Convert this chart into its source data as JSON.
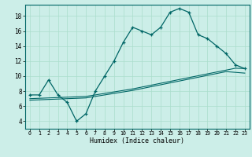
{
  "title": "",
  "xlabel": "Humidex (Indice chaleur)",
  "bg_color": "#cceee8",
  "line_color": "#006666",
  "grid_color": "#aaddcc",
  "xlim": [
    -0.5,
    23.5
  ],
  "ylim": [
    3.0,
    19.5
  ],
  "xticks": [
    0,
    1,
    2,
    3,
    4,
    5,
    6,
    7,
    8,
    9,
    10,
    11,
    12,
    13,
    14,
    15,
    16,
    17,
    18,
    19,
    20,
    21,
    22,
    23
  ],
  "yticks": [
    4,
    6,
    8,
    10,
    12,
    14,
    16,
    18
  ],
  "main_y": [
    7.5,
    7.5,
    9.5,
    7.5,
    6.5,
    4.0,
    5.0,
    8.0,
    10.0,
    12.0,
    14.5,
    16.5,
    16.0,
    15.5,
    16.5,
    18.5,
    19.0,
    18.5,
    15.5,
    15.0,
    14.0,
    13.0,
    11.5,
    11.0
  ],
  "line1_y": [
    7.0,
    7.05,
    7.1,
    7.15,
    7.2,
    7.25,
    7.3,
    7.5,
    7.7,
    7.9,
    8.1,
    8.3,
    8.55,
    8.8,
    9.05,
    9.3,
    9.55,
    9.8,
    10.05,
    10.3,
    10.55,
    10.8,
    11.05,
    11.0
  ],
  "line2_y": [
    6.8,
    6.85,
    6.9,
    6.95,
    7.0,
    7.05,
    7.1,
    7.3,
    7.5,
    7.7,
    7.9,
    8.1,
    8.35,
    8.6,
    8.85,
    9.1,
    9.35,
    9.6,
    9.85,
    10.1,
    10.35,
    10.6,
    10.5,
    10.4
  ],
  "marker": "+"
}
